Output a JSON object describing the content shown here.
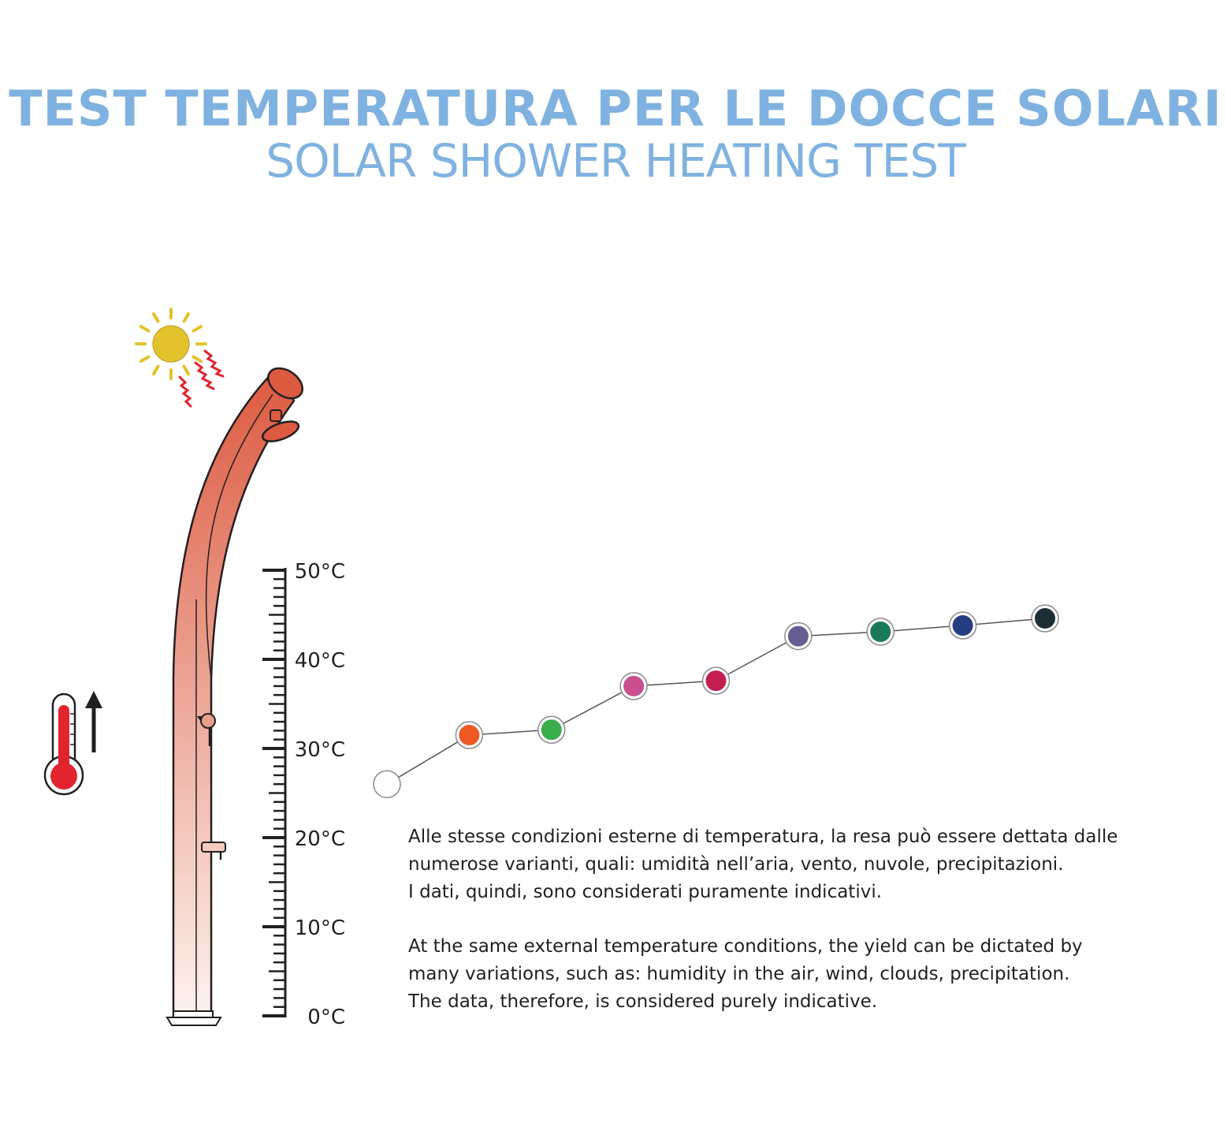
{
  "title_it": "TEST TEMPERATURA PER LE DOCCE SOLARI",
  "title_en": "SOLAR SHOWER HEATING TEST",
  "colors": {
    "title": "#7fb2e0",
    "shower_top": "#dc5a40",
    "shower_bottom": "#fdf2ee",
    "sun": "#e3c22d",
    "heat": "#e2242e",
    "thermometer": "#e2242e",
    "line": "#555555"
  },
  "note_it": [
    "Alle stesse condizioni esterne di temperatura, la resa può essere dettata dalle",
    "numerose varianti, quali: umidità nell’aria, vento, nuvole, precipitazioni.",
    "I dati, quindi, sono considerati puramente indicativi."
  ],
  "note_en": [
    "At the same external temperature conditions, the yield can be dictated by",
    "many variations, such as: humidity in the air, wind, clouds, precipitation.",
    "The data, therefore, is considered purely indicative."
  ],
  "chart_data": {
    "type": "line",
    "title": "",
    "xlabel": "",
    "ylabel": "",
    "ylim": [
      0,
      50
    ],
    "y_ticks": [
      "50°C",
      "40°C",
      "30°C",
      "20°C",
      "10°C",
      "0°C"
    ],
    "y_tick_values": [
      50,
      40,
      30,
      20,
      10,
      0
    ],
    "x": [
      1,
      2,
      3,
      4,
      5,
      6,
      7,
      8,
      9
    ],
    "series": [
      {
        "values": [
          26.0,
          31.5,
          32.1,
          37.0,
          37.6,
          42.6,
          43.1,
          43.8,
          44.6
        ],
        "marker_colors": [
          "#ffffff",
          "#ee5a24",
          "#3aae4a",
          "#c94f8f",
          "#c41d4f",
          "#675d92",
          "#1a7a58",
          "#243e82",
          "#1c2d36"
        ]
      }
    ]
  }
}
